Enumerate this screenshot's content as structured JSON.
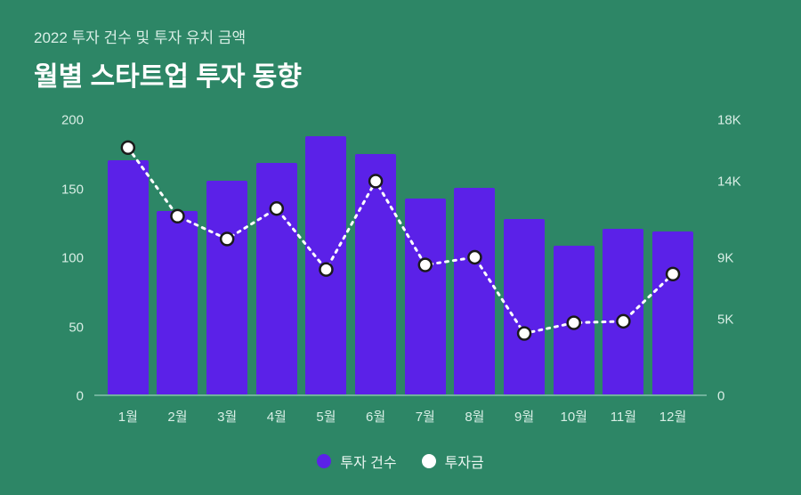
{
  "header": {
    "subtitle": "2022 투자 건수 및 투자 유치 금액",
    "title": "월별 스타트업 투자 동향"
  },
  "chart": {
    "type": "bar+line",
    "background_color": "#2d8666",
    "axis_color": "#6fb29b",
    "text_color": "#d8eee5",
    "categories": [
      "1월",
      "2월",
      "3월",
      "4월",
      "5월",
      "6월",
      "7월",
      "8월",
      "9월",
      "10월",
      "11월",
      "12월"
    ],
    "left_axis": {
      "min": 0,
      "max": 200,
      "ticks": [
        0,
        50,
        100,
        150,
        200
      ],
      "tick_labels": [
        "0",
        "50",
        "100",
        "150",
        "200"
      ]
    },
    "right_axis": {
      "min": 0,
      "max": 18000,
      "ticks": [
        0,
        5000,
        9000,
        14000,
        18000
      ],
      "tick_labels": [
        "0",
        "5K",
        "9K",
        "14K",
        "18K"
      ]
    },
    "bars": {
      "label": "투자 건수",
      "color": "#5b21e8",
      "width": 46,
      "values": [
        170,
        133,
        155,
        168,
        187,
        174,
        142,
        150,
        127,
        108,
        120,
        118
      ]
    },
    "line": {
      "label": "투자금",
      "stroke": "#ffffff",
      "stroke_width": 3,
      "dash": "3 6",
      "marker_fill": "#ffffff",
      "marker_stroke": "#1a1a1a",
      "marker_stroke_width": 2.5,
      "marker_radius": 7,
      "values": [
        16200,
        11700,
        10200,
        12200,
        8200,
        14000,
        8500,
        9000,
        4000,
        4700,
        4800,
        7900
      ]
    },
    "legend": {
      "items": [
        {
          "kind": "bar",
          "label": "투자 건수",
          "color": "#5b21e8"
        },
        {
          "kind": "dot",
          "label": "투자금",
          "color": "#ffffff"
        }
      ]
    }
  }
}
